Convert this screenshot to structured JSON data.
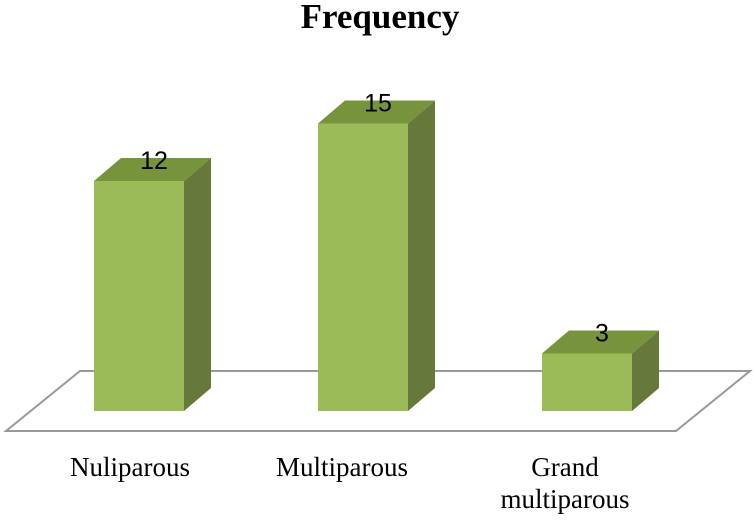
{
  "chart_data": {
    "type": "bar",
    "title": "Frequency",
    "categories": [
      "Nuliparous",
      "Multiparous",
      "Grand multiparous"
    ],
    "category_lines": [
      [
        "Nuliparous"
      ],
      [
        "Multiparous"
      ],
      [
        "Grand",
        "multiparous"
      ]
    ],
    "values": [
      12,
      15,
      3
    ],
    "data_labels": [
      "12",
      "15",
      "3"
    ],
    "xlabel": "",
    "ylabel": "",
    "style": "3d-column",
    "grid": false,
    "legend": "none",
    "colors": {
      "front": "#9bbb59",
      "top": "#77933c",
      "side": "#66793a",
      "floor": "#999999"
    }
  }
}
